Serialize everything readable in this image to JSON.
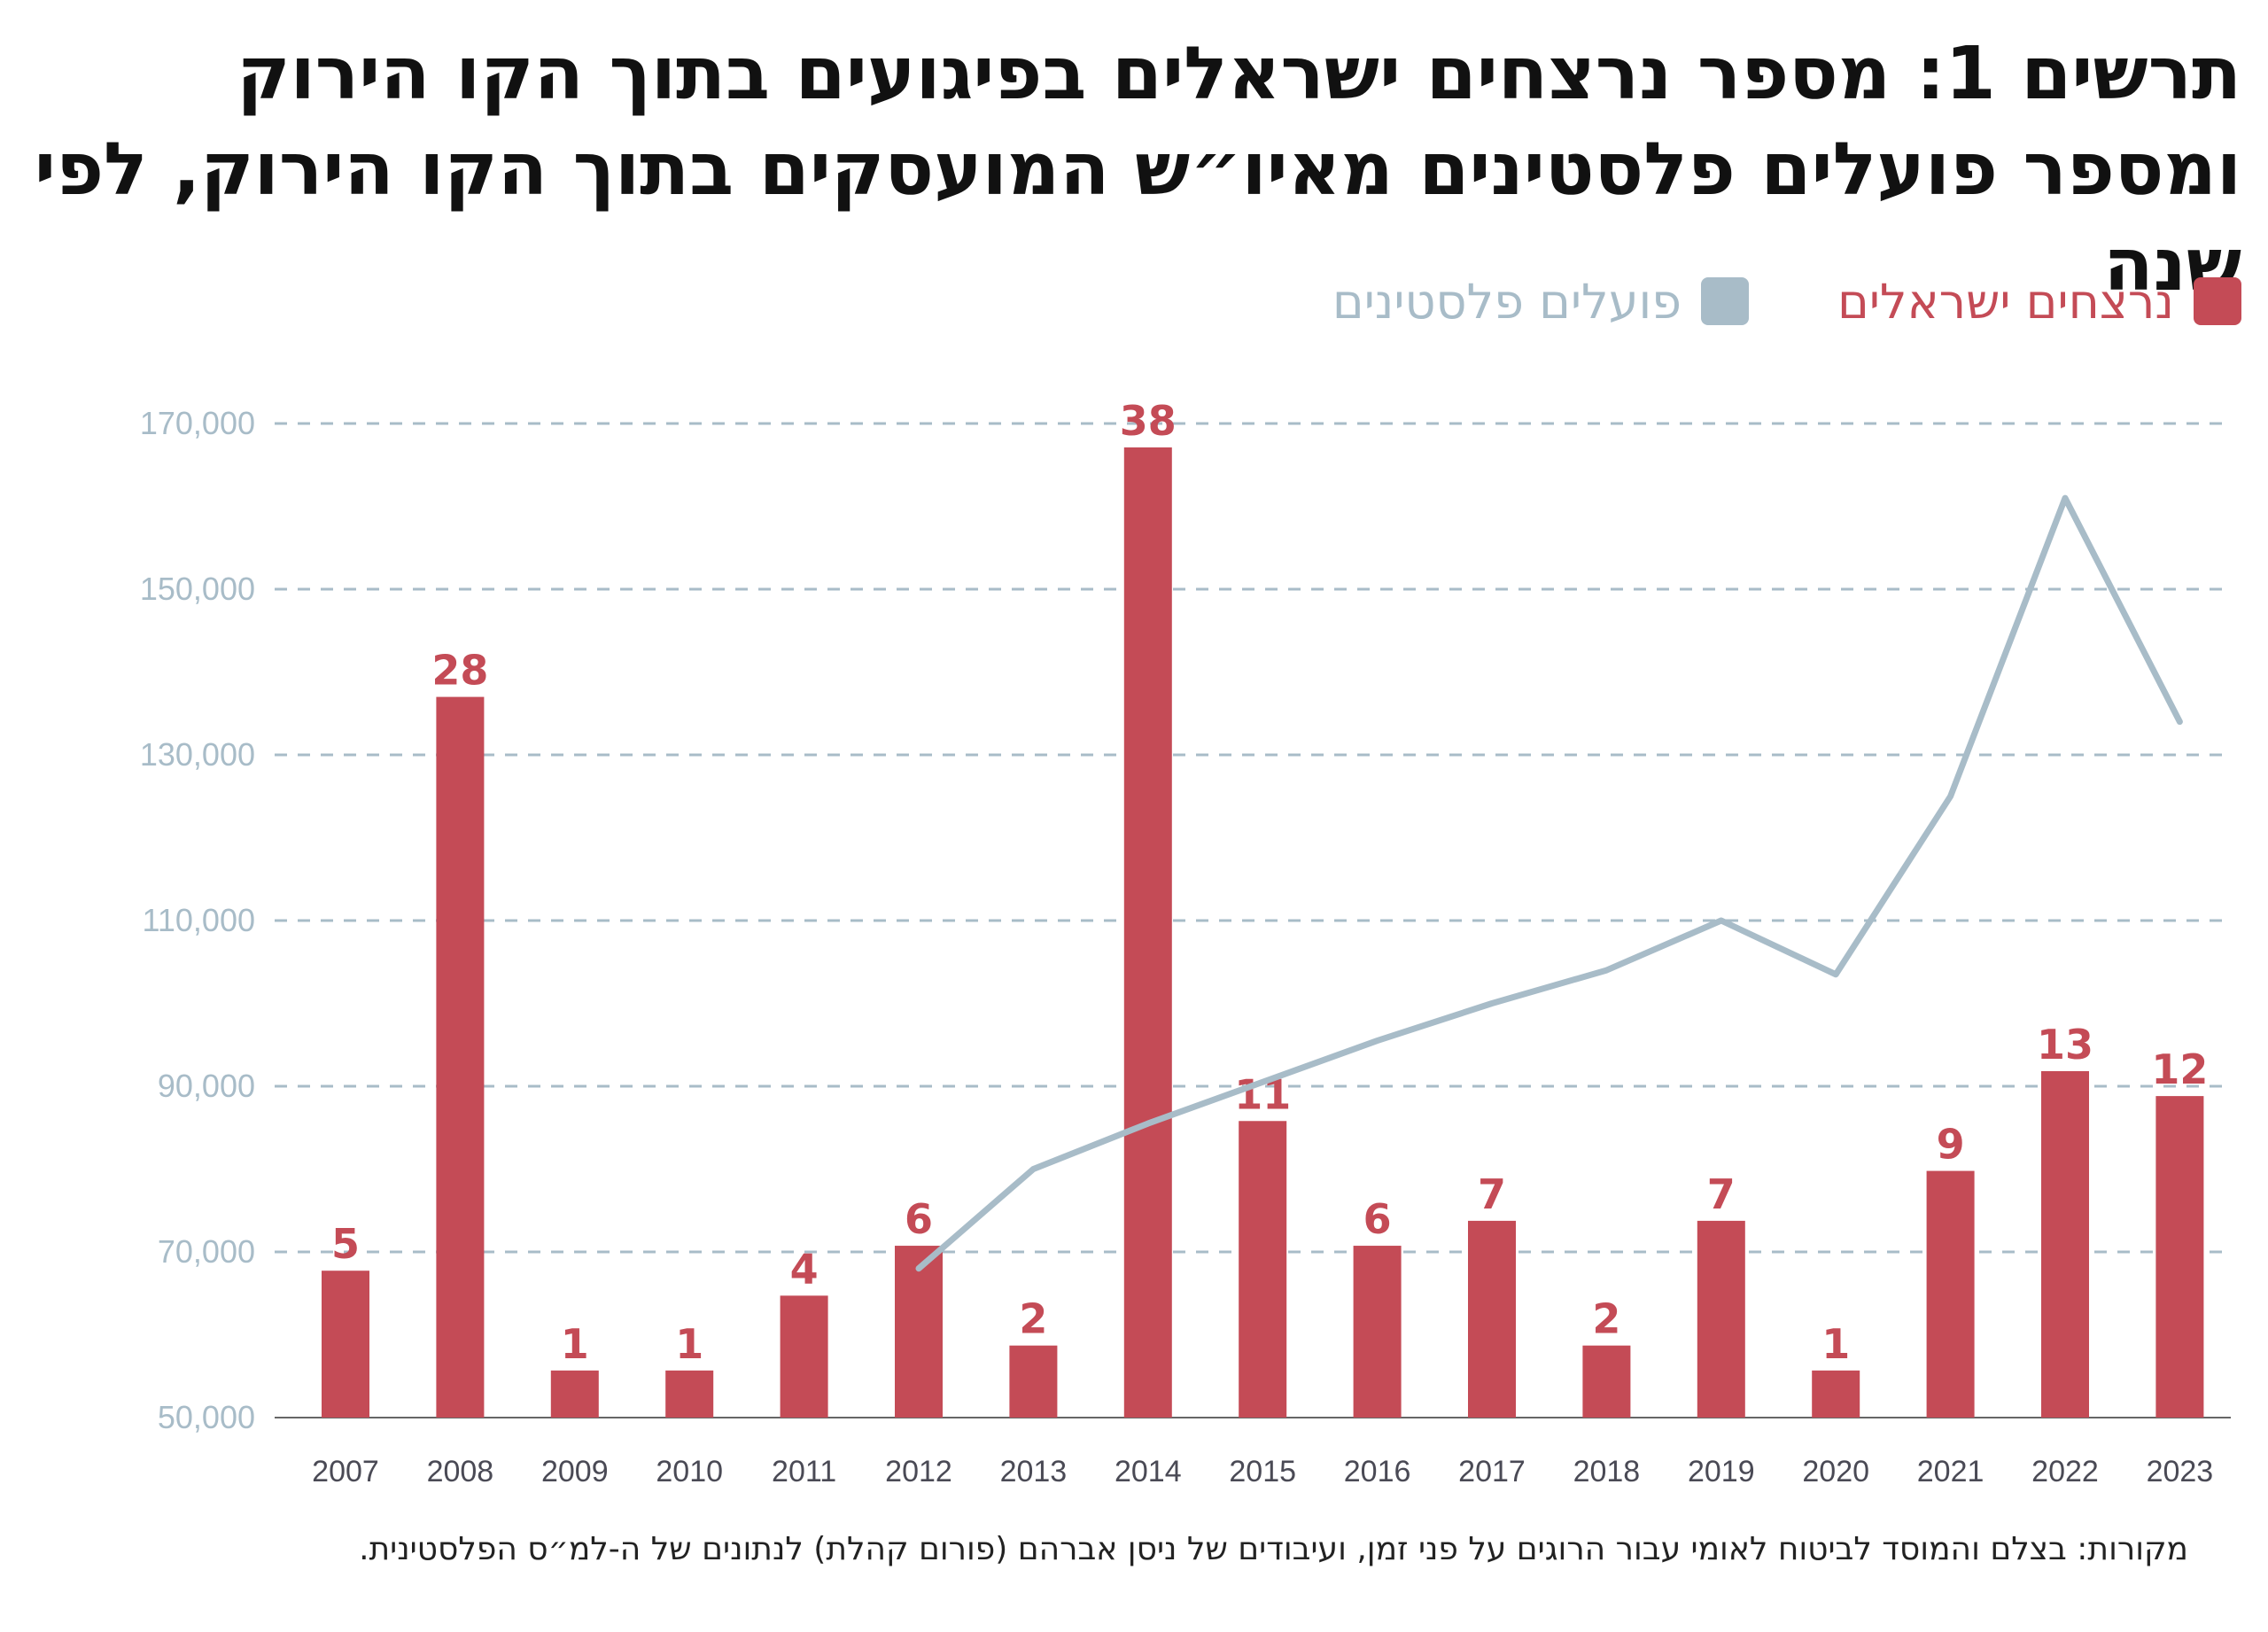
{
  "title": "תרשים 1: מספר נרצחים ישראלים בפיגועים בתוך הקו הירוק ומספר פועלים פלסטינים מאיו״ש המועסקים בתוך הקו הירוק, לפי שנה",
  "source": "מקורות: בצלם והמוסד לביטוח לאומי עבור הרוגים על פני זמן, ועיבודים של ניסן אברהם (פורום קהלת) לנתונים של ה-למ״ס הפלסטינית.",
  "colors": {
    "bar": "#c44b56",
    "line": "#a8bcc8",
    "grid": "#a8bcc8",
    "tick": "#a8bcc8",
    "year": "#4a4a55",
    "axis": "#666666"
  },
  "chart_data": {
    "type": "bar+line",
    "categories": [
      "2007",
      "2008",
      "2009",
      "2010",
      "2011",
      "2012",
      "2013",
      "2014",
      "2015",
      "2016",
      "2017",
      "2018",
      "2019",
      "2020",
      "2021",
      "2022",
      "2023"
    ],
    "ylim": [
      50000,
      170000
    ],
    "yticks": [
      50000,
      70000,
      90000,
      110000,
      130000,
      150000,
      170000
    ],
    "ytick_labels": [
      "50,000",
      "70,000",
      "90,000",
      "110,000",
      "130,000",
      "150,000",
      "170,000"
    ],
    "grid": "horizontal-dashed",
    "legend_position": "top-right",
    "series": [
      {
        "name": "נרצחים ישראלים",
        "kind": "bar",
        "values": [
          5,
          28,
          1,
          1,
          4,
          6,
          2,
          38,
          11,
          6,
          7,
          2,
          7,
          1,
          9,
          13,
          12
        ],
        "labels": [
          "5",
          "28",
          "1",
          "1",
          "4",
          "6",
          "2",
          "38",
          "11",
          "6",
          "7",
          "2",
          "7",
          "1",
          "9",
          "13",
          "12"
        ]
      },
      {
        "name": "פועלים פלסטינים",
        "kind": "line",
        "axis": "left",
        "values": [
          null,
          null,
          null,
          null,
          null,
          68000,
          80000,
          85500,
          90500,
          95500,
          100000,
          104000,
          110000,
          103500,
          125000,
          161000,
          134000
        ]
      }
    ]
  }
}
